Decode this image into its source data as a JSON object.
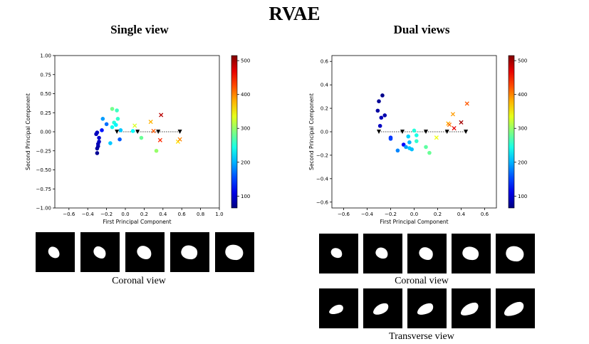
{
  "title": "RVAE",
  "panels": {
    "single": {
      "title": "Single view",
      "coronal_caption": "Coronal view"
    },
    "dual": {
      "title": "Dual views",
      "coronal_caption": "Coronal view",
      "transverse_caption": "Transverse view"
    }
  },
  "colorbar": {
    "ticks": [
      100,
      200,
      300,
      400,
      500
    ],
    "range": [
      65,
      515
    ],
    "colormap": "jet"
  },
  "chart_data": [
    {
      "type": "scatter",
      "title": "Single view",
      "xlabel": "First Principal Component",
      "ylabel": "Second Principal Component",
      "xlim": [
        -0.75,
        1.0
      ],
      "ylim": [
        -1.0,
        1.0
      ],
      "xticks": [
        -0.6,
        -0.4,
        -0.2,
        0.0,
        0.2,
        0.4,
        0.6,
        0.8,
        1.0
      ],
      "yticks": [
        -1.0,
        -0.75,
        -0.5,
        -0.25,
        0.0,
        0.25,
        0.5,
        0.75,
        1.0
      ],
      "xtick_labels": [
        "−0.6",
        "−0.4",
        "−0.2",
        "0.0",
        "0.2",
        "0.4",
        "0.6",
        "0.8",
        "1.0"
      ],
      "ytick_labels": [
        "−1.00",
        "−0.75",
        "−0.50",
        "−0.25",
        "0.00",
        "0.25",
        "0.50",
        "0.75",
        "1.00"
      ],
      "circles": [
        {
          "x": -0.31,
          "y": -0.03,
          "c": 90
        },
        {
          "x": -0.3,
          "y": -0.01,
          "c": 95
        },
        {
          "x": -0.28,
          "y": -0.08,
          "c": 100
        },
        {
          "x": -0.28,
          "y": -0.13,
          "c": 95
        },
        {
          "x": -0.29,
          "y": -0.16,
          "c": 90
        },
        {
          "x": -0.29,
          "y": -0.19,
          "c": 85
        },
        {
          "x": -0.3,
          "y": -0.22,
          "c": 80
        },
        {
          "x": -0.3,
          "y": -0.28,
          "c": 75
        },
        {
          "x": -0.25,
          "y": 0.02,
          "c": 130
        },
        {
          "x": -0.24,
          "y": 0.17,
          "c": 190
        },
        {
          "x": -0.2,
          "y": 0.1,
          "c": 170
        },
        {
          "x": -0.16,
          "y": -0.15,
          "c": 210
        },
        {
          "x": -0.14,
          "y": 0.06,
          "c": 240
        },
        {
          "x": -0.12,
          "y": 0.12,
          "c": 250
        },
        {
          "x": -0.1,
          "y": 0.09,
          "c": 230
        },
        {
          "x": -0.09,
          "y": 0.28,
          "c": 260
        },
        {
          "x": -0.08,
          "y": 0.17,
          "c": 255
        },
        {
          "x": -0.14,
          "y": 0.3,
          "c": 285
        },
        {
          "x": -0.06,
          "y": -0.1,
          "c": 160
        },
        {
          "x": -0.05,
          "y": 0.02,
          "c": 210
        },
        {
          "x": 0.08,
          "y": 0.01,
          "c": 235
        },
        {
          "x": 0.17,
          "y": -0.08,
          "c": 280
        },
        {
          "x": 0.33,
          "y": -0.25,
          "c": 300
        }
      ],
      "crosses": [
        {
          "x": 0.1,
          "y": 0.08,
          "c": 330
        },
        {
          "x": 0.27,
          "y": 0.13,
          "c": 380
        },
        {
          "x": 0.3,
          "y": 0.01,
          "c": 420
        },
        {
          "x": 0.38,
          "y": 0.22,
          "c": 490
        },
        {
          "x": 0.37,
          "y": -0.11,
          "c": 440
        },
        {
          "x": 0.56,
          "y": -0.13,
          "c": 360
        },
        {
          "x": 0.58,
          "y": -0.1,
          "c": 400
        }
      ],
      "triangles": [
        {
          "x": -0.09,
          "y": 0.0
        },
        {
          "x": 0.13,
          "y": 0.0
        },
        {
          "x": 0.35,
          "y": 0.0
        },
        {
          "x": 0.58,
          "y": 0.0
        }
      ]
    },
    {
      "type": "scatter",
      "title": "Dual views",
      "xlabel": "First Principal Component",
      "ylabel": "Second Principal Component",
      "xlim": [
        -0.7,
        0.7
      ],
      "ylim": [
        -0.65,
        0.65
      ],
      "xticks": [
        -0.6,
        -0.4,
        -0.2,
        0.0,
        0.2,
        0.4,
        0.6
      ],
      "yticks": [
        -0.6,
        -0.4,
        -0.2,
        0.0,
        0.2,
        0.4,
        0.6
      ],
      "xtick_labels": [
        "−0.6",
        "−0.4",
        "−0.2",
        "0.0",
        "0.2",
        "0.4",
        "0.6"
      ],
      "ytick_labels": [
        "−0.6",
        "−0.4",
        "−0.2",
        "0.0",
        "0.2",
        "0.4",
        "0.6"
      ],
      "circles": [
        {
          "x": -0.27,
          "y": 0.31,
          "c": 70
        },
        {
          "x": -0.3,
          "y": 0.26,
          "c": 75
        },
        {
          "x": -0.31,
          "y": 0.18,
          "c": 80
        },
        {
          "x": -0.25,
          "y": 0.14,
          "c": 85
        },
        {
          "x": -0.28,
          "y": 0.12,
          "c": 90
        },
        {
          "x": -0.29,
          "y": 0.05,
          "c": 95
        },
        {
          "x": -0.2,
          "y": -0.05,
          "c": 140
        },
        {
          "x": -0.2,
          "y": -0.06,
          "c": 150
        },
        {
          "x": -0.14,
          "y": -0.16,
          "c": 180
        },
        {
          "x": -0.09,
          "y": -0.11,
          "c": 120
        },
        {
          "x": -0.07,
          "y": -0.13,
          "c": 190
        },
        {
          "x": -0.04,
          "y": -0.09,
          "c": 200
        },
        {
          "x": -0.04,
          "y": -0.14,
          "c": 210
        },
        {
          "x": -0.02,
          "y": -0.15,
          "c": 205
        },
        {
          "x": -0.05,
          "y": -0.04,
          "c": 215
        },
        {
          "x": 0.0,
          "y": 0.01,
          "c": 250
        },
        {
          "x": 0.02,
          "y": -0.03,
          "c": 245
        },
        {
          "x": 0.02,
          "y": -0.08,
          "c": 255
        },
        {
          "x": 0.1,
          "y": -0.13,
          "c": 275
        },
        {
          "x": 0.13,
          "y": -0.18,
          "c": 280
        }
      ],
      "crosses": [
        {
          "x": 0.19,
          "y": -0.05,
          "c": 340
        },
        {
          "x": 0.29,
          "y": 0.07,
          "c": 380
        },
        {
          "x": 0.3,
          "y": 0.06,
          "c": 410
        },
        {
          "x": 0.33,
          "y": 0.15,
          "c": 390
        },
        {
          "x": 0.34,
          "y": 0.03,
          "c": 470
        },
        {
          "x": 0.4,
          "y": 0.08,
          "c": 500
        },
        {
          "x": 0.45,
          "y": 0.24,
          "c": 420
        }
      ],
      "triangles": [
        {
          "x": -0.3,
          "y": 0.0
        },
        {
          "x": -0.1,
          "y": 0.0
        },
        {
          "x": 0.1,
          "y": 0.0
        },
        {
          "x": 0.28,
          "y": 0.0
        },
        {
          "x": 0.44,
          "y": 0.0
        }
      ]
    }
  ]
}
